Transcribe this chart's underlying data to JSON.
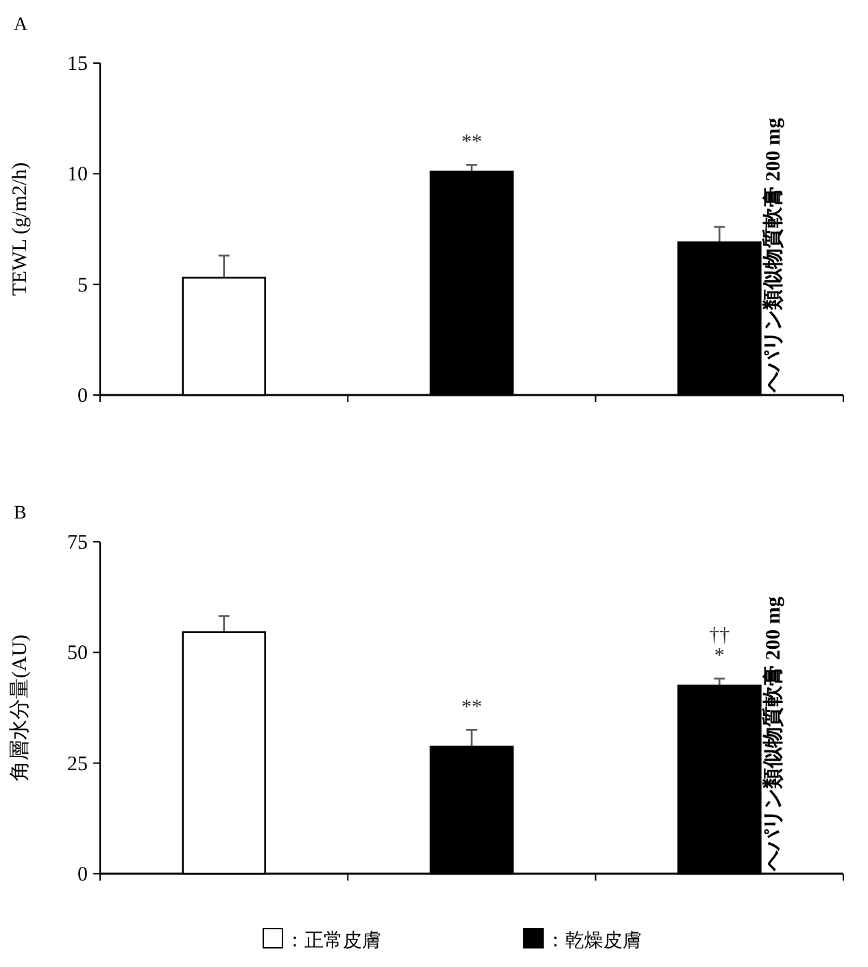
{
  "chart_data": [
    {
      "type": "bar",
      "title": "A",
      "ylabel": "TEWL (g/m2/h)",
      "categories": [
        null,
        null,
        "ヘパリン類似物質軟膏 200 mg"
      ],
      "ylim": [
        0,
        15
      ],
      "yticks": [
        0,
        5,
        10,
        15
      ],
      "series": [
        {
          "color": "#ffffff",
          "values": [
            5.3,
            null,
            null
          ],
          "errors": [
            [
              5.3,
              6.3
            ],
            null,
            null
          ],
          "value_labels": [
            null,
            null,
            null
          ]
        },
        {
          "color": "#000000",
          "values": [
            null,
            10.1,
            6.9
          ],
          "errors": [
            null,
            [
              10.1,
              10.4
            ],
            [
              6.9,
              7.6
            ]
          ],
          "value_labels": [
            null,
            "**",
            null
          ]
        }
      ]
    },
    {
      "type": "bar",
      "title": "B",
      "ylabel": "角層水分量(AU)",
      "categories": [
        null,
        null,
        "ヘパリン類似物質軟膏 200 mg"
      ],
      "ylim": [
        0,
        75
      ],
      "yticks": [
        0,
        25,
        50,
        75
      ],
      "legend": "bottom",
      "series": [
        {
          "name": "：正常皮膚",
          "color": "#ffffff",
          "values": [
            54.6,
            null,
            null
          ],
          "errors": [
            [
              54.6,
              58.2
            ],
            null,
            null
          ],
          "value_labels": [
            null,
            null,
            null
          ]
        },
        {
          "name": "：乾燥皮膚",
          "color": "#000000",
          "values": [
            null,
            28.7,
            42.5
          ],
          "errors": [
            null,
            [
              28.7,
              32.5
            ],
            [
              42.5,
              44.1
            ]
          ],
          "value_labels": [
            null,
            "**",
            "††\n*"
          ]
        }
      ]
    }
  ]
}
